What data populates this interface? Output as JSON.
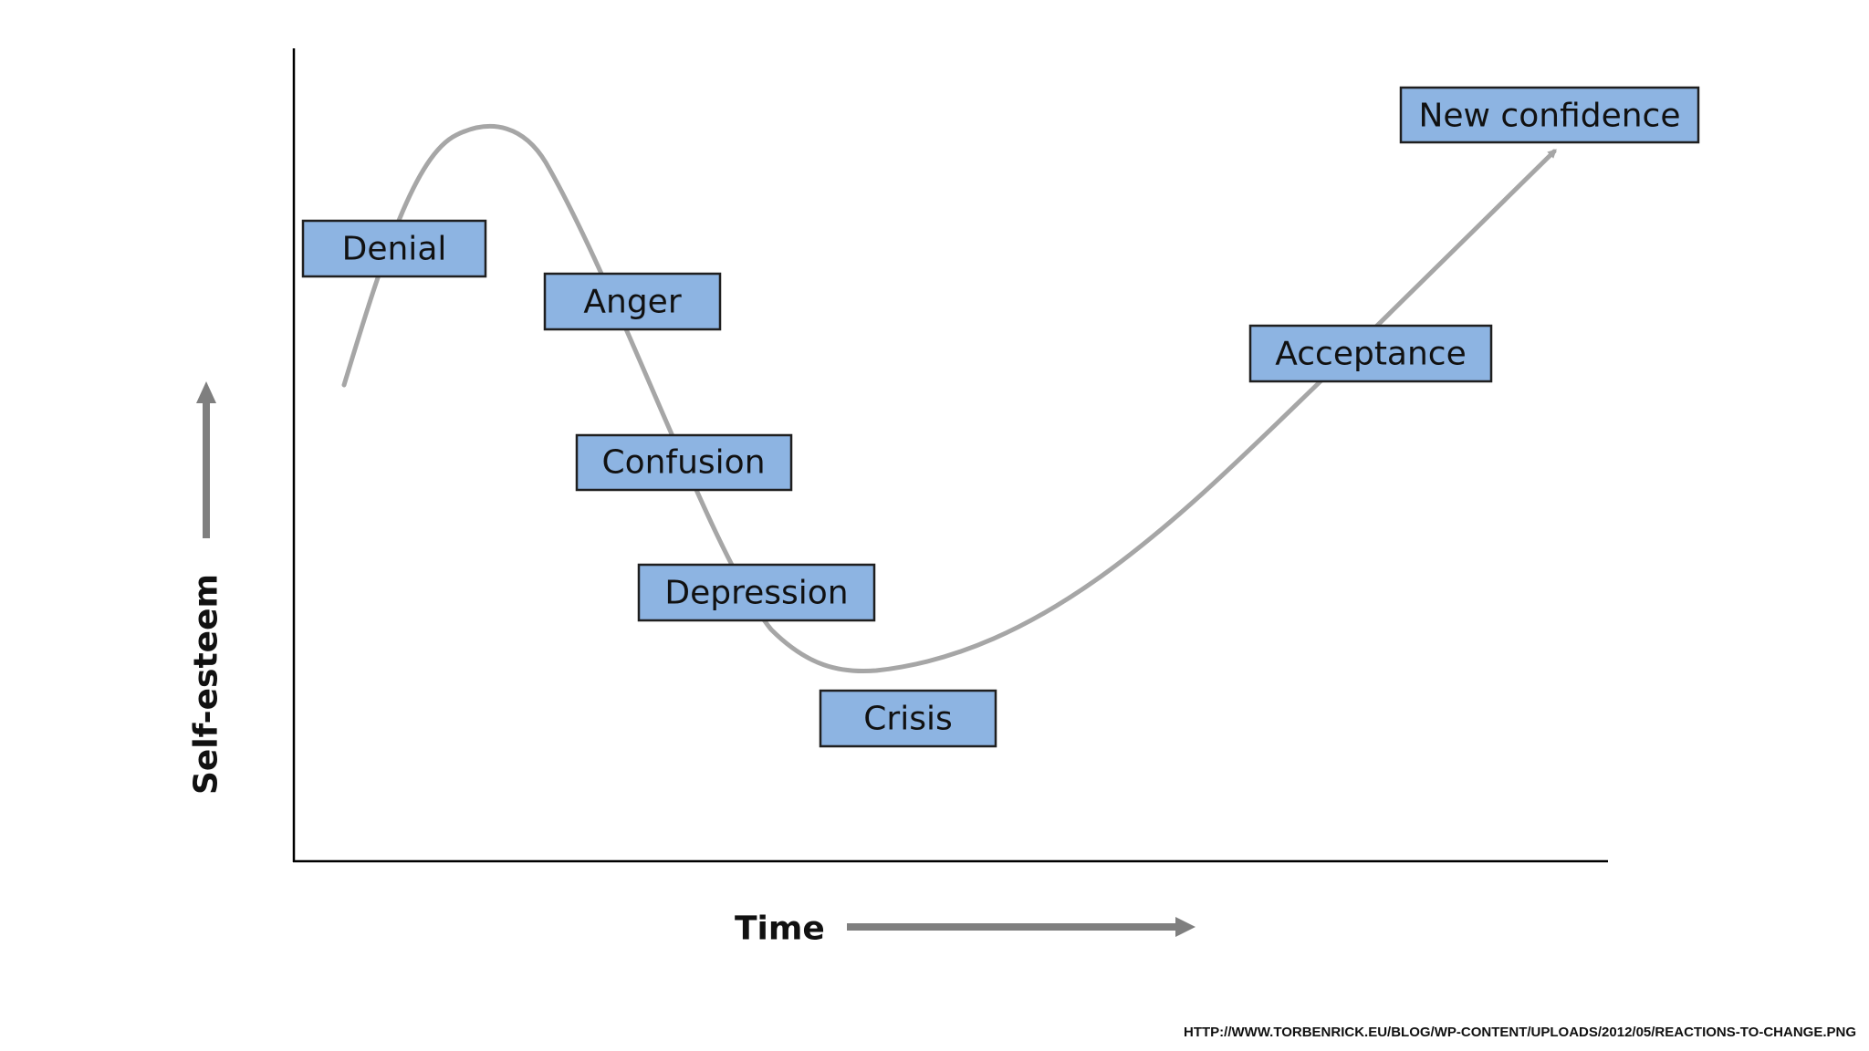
{
  "diagram": {
    "y_axis_label": "Self-esteem",
    "x_axis_label": "Time",
    "stages": [
      {
        "id": "denial",
        "label": "Denial"
      },
      {
        "id": "anger",
        "label": "Anger"
      },
      {
        "id": "confusion",
        "label": "Confusion"
      },
      {
        "id": "depression",
        "label": "Depression"
      },
      {
        "id": "crisis",
        "label": "Crisis"
      },
      {
        "id": "acceptance",
        "label": "Acceptance"
      },
      {
        "id": "new-confidence",
        "label": "New confidence"
      }
    ],
    "colors": {
      "box_fill": "#8db4e2",
      "box_border": "#1f1f1f",
      "curve": "#a6a6a6",
      "axis_arrows": "#7f7f7f",
      "axes": "#000000"
    }
  },
  "source_url": "HTTP://WWW.TORBENRICK.EU/BLOG/WP-CONTENT/UPLOADS/2012/05/REACTIONS-TO-CHANGE.PNG"
}
